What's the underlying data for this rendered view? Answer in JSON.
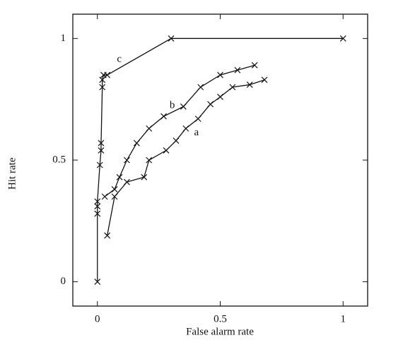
{
  "chart_data": {
    "type": "line",
    "x_label": "False alarm rate",
    "y_label": "Hit rate",
    "xlim": [
      -0.1,
      1.1
    ],
    "ylim": [
      -0.1,
      1.1
    ],
    "xticks": [
      0,
      0.5,
      1
    ],
    "yticks": [
      0,
      0.5,
      1
    ],
    "series": [
      {
        "name": "a",
        "color": "#111111",
        "x": [
          0.04,
          0.07,
          0.12,
          0.19,
          0.21,
          0.28,
          0.32,
          0.36,
          0.41,
          0.46,
          0.5,
          0.55,
          0.62,
          0.68
        ],
        "values": [
          0.19,
          0.35,
          0.41,
          0.43,
          0.5,
          0.54,
          0.58,
          0.63,
          0.67,
          0.73,
          0.76,
          0.8,
          0.81,
          0.83
        ]
      },
      {
        "name": "b",
        "color": "#111111",
        "x": [
          0.03,
          0.07,
          0.09,
          0.12,
          0.16,
          0.21,
          0.27,
          0.35,
          0.42,
          0.5,
          0.57,
          0.64
        ],
        "values": [
          0.35,
          0.38,
          0.43,
          0.5,
          0.57,
          0.63,
          0.68,
          0.72,
          0.8,
          0.85,
          0.87,
          0.89
        ]
      },
      {
        "name": "c",
        "color": "#111111",
        "x": [
          0,
          0,
          0,
          0,
          0.01,
          0.015,
          0.015,
          0.02,
          0.02,
          0.025,
          0.04,
          0.3,
          1
        ],
        "values": [
          0,
          0.28,
          0.31,
          0.33,
          0.48,
          0.54,
          0.57,
          0.8,
          0.83,
          0.85,
          0.85,
          1,
          1
        ]
      }
    ]
  }
}
